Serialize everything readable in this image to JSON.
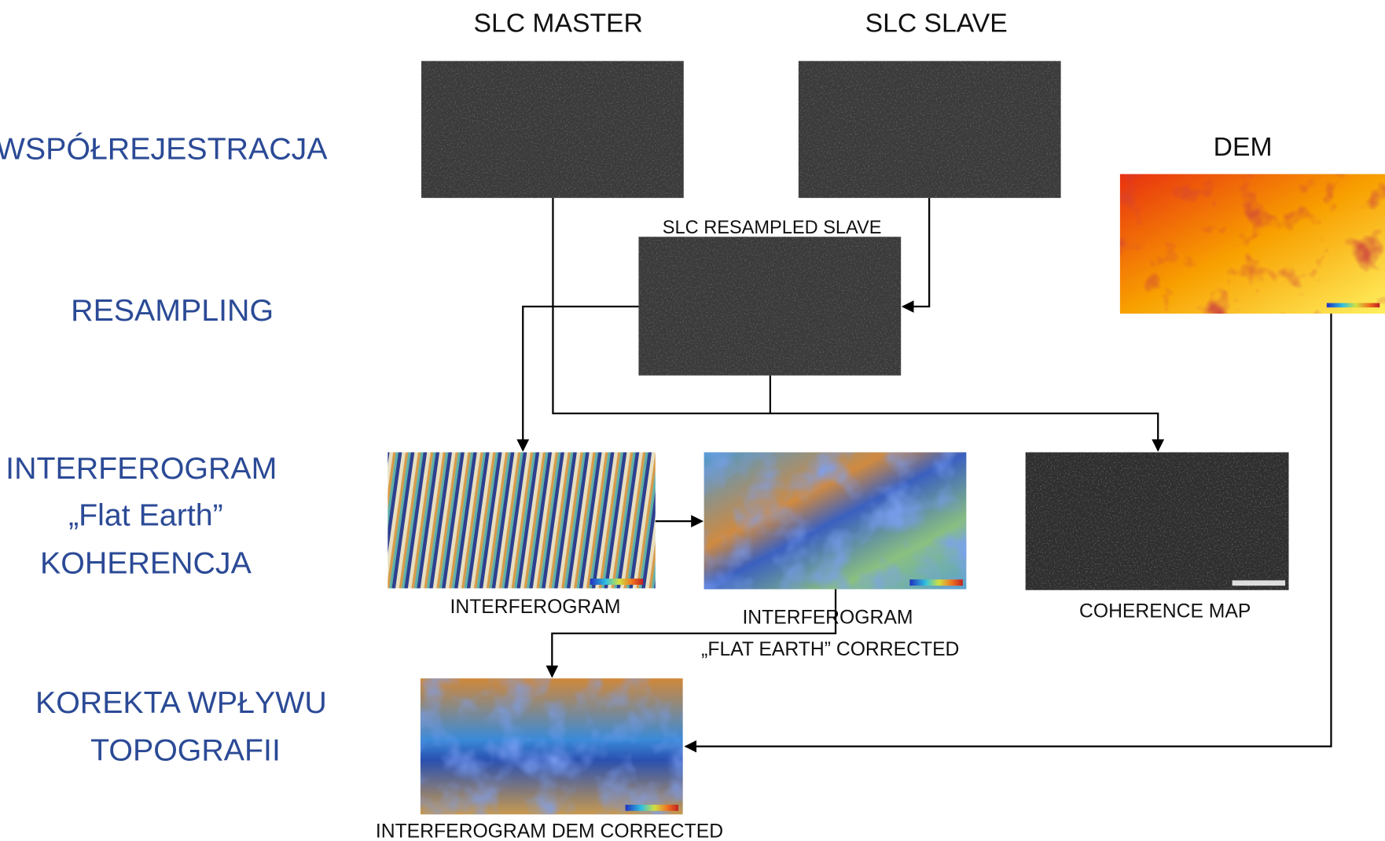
{
  "stages": [
    {
      "lines": [
        "WSPÓŁREJESTRACJA"
      ]
    },
    {
      "lines": [
        "RESAMPLING"
      ]
    },
    {
      "lines": [
        "INTERFEROGRAM",
        "„Flat Earth”",
        "KOHERENCJA"
      ]
    },
    {
      "lines": [
        "KOREKTA WPŁYWU",
        "TOPOGRAFII"
      ]
    }
  ],
  "images": [
    {
      "lines": [
        "SLC MASTER"
      ]
    },
    {
      "lines": [
        "SLC SLAVE"
      ]
    },
    {
      "lines": [
        "DEM"
      ]
    },
    {
      "lines": [
        "SLC RESAMPLED SLAVE"
      ]
    },
    {
      "lines": [
        "INTERFEROGRAM"
      ]
    },
    {
      "lines": [
        "INTERFEROGRAM",
        "„FLAT EARTH” CORRECTED"
      ]
    },
    {
      "lines": [
        "COHERENCE MAP"
      ]
    },
    {
      "lines": [
        "INTERFEROGRAM DEM CORRECTED"
      ]
    }
  ]
}
